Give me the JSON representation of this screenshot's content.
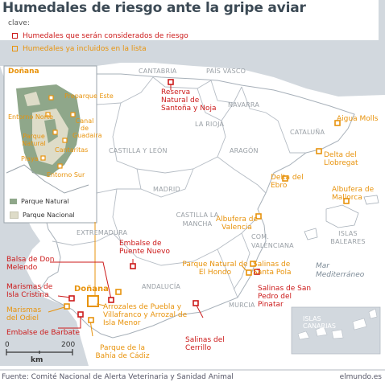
{
  "title": "Humedales de riesgo ante la gripe aviar",
  "legend": {
    "label": "clave:",
    "items": [
      {
        "label": "Humedales que serán considerados de riesgo",
        "color": "#cc1a1a"
      },
      {
        "label": "Humedales ya incluidos en la lista",
        "color": "#e8930c"
      }
    ]
  },
  "regions": [
    "CANTABRIA",
    "PAÍS VASCO",
    "NAVARRA",
    "LA RIOJA",
    "CATALUÑA",
    "ARAGÓN",
    "CASTILLA Y LEÓN",
    "MADRID",
    "EXTREMADURA",
    "CASTILLA LA MANCHA",
    "COM. VALENCIANA",
    "ANDALUCÍA",
    "MURCIA"
  ],
  "seas": {
    "mediterranean": "Mar Mediterráneo",
    "baleares": "ISLAS BALEARES",
    "canarias": "ISLAS CANARIAS"
  },
  "risk_wetlands": {
    "santona": "Reserva Natural de Santoña y Noja",
    "puente_nuevo": "Embalse de Puente Nuevo",
    "melendo": "Balsa de Don Melendo",
    "isla_cristina": "Marismas de Isla Cristina",
    "barbate": "Embalse de Barbate",
    "san_pedro": "Salinas de San Pedro del Pinatar",
    "cerrillo": "Salinas del Cerrillo"
  },
  "listed_wetlands": {
    "aigua_molls": "Aigua Molls",
    "llobregat": "Delta del Llobregat",
    "ebro": "Delta del Ebro",
    "mallorca": "Albufera de Mallorca",
    "valencia": "Albufera de Valencia",
    "hondo": "Parque Natural de El Hondo",
    "santa_pola": "Salinas de Santa Pola",
    "donana": "Doñana",
    "odiel": "Marismas del Odiel",
    "puebla": "Arrozales de Puebla y Villafranco y Arrozal de Isla Menor",
    "cadiz": "Parque de la Bahía de Cádiz"
  },
  "inset": {
    "title": "Doñana",
    "labels": {
      "preparque_este": "Preparque Este",
      "entorno_norte": "Entorno Norte",
      "canal_guadaira": "Canal de Guadaira",
      "parque_natural": "Parque Natural",
      "cantaritas": "Cantaritas",
      "playa": "Playa",
      "entorno_sur": "Entorno Sur"
    },
    "legend": [
      {
        "label": "Parque Natural",
        "color": "#8fa78a"
      },
      {
        "label": "Parque Nacional",
        "color": "#dedcc8"
      }
    ]
  },
  "scale": {
    "zero": "0",
    "value": "200",
    "unit": "km"
  },
  "footer": {
    "source": "Fuente: Comité Nacional de Alerta Veterinaria y Sanidad Animal",
    "credit": "elmundo.es"
  },
  "colors": {
    "risk": "#cc1a1a",
    "listed": "#e8930c",
    "land": "#d2d8de",
    "spain": "#ffffff",
    "sea": "#ffffff"
  }
}
